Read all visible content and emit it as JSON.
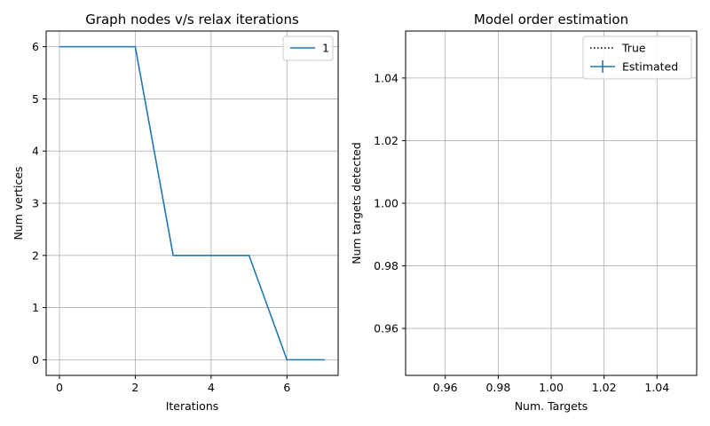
{
  "chart_data": [
    {
      "type": "line",
      "title": "Graph nodes v/s relax iterations",
      "xlabel": "Iterations",
      "ylabel": "Num vertices",
      "xlim": [
        -0.35,
        7.35
      ],
      "ylim": [
        -0.3,
        6.3
      ],
      "xticks": [
        0,
        2,
        4,
        6
      ],
      "yticks": [
        0,
        1,
        2,
        3,
        4,
        5,
        6
      ],
      "grid": true,
      "legend_position": "top-right",
      "series": [
        {
          "name": "1",
          "color": "#1f77b4",
          "x": [
            0,
            1,
            2,
            3,
            4,
            5,
            6,
            7
          ],
          "y": [
            6,
            6,
            6,
            2,
            2,
            2,
            0,
            0
          ]
        }
      ]
    },
    {
      "type": "line",
      "title": "Model order estimation",
      "xlabel": "Num. Targets",
      "ylabel": "Num targets detected",
      "xlim": [
        0.945,
        1.055
      ],
      "ylim": [
        0.945,
        1.055
      ],
      "xticks": [
        0.96,
        0.98,
        1.0,
        1.02,
        1.04
      ],
      "xtick_labels": [
        "0.96",
        "0.98",
        "1.00",
        "1.02",
        "1.04"
      ],
      "yticks": [
        0.96,
        0.98,
        1.0,
        1.02,
        1.04
      ],
      "ytick_labels": [
        "0.96",
        "0.98",
        "1.00",
        "1.02",
        "1.04"
      ],
      "grid": true,
      "legend_position": "top-right",
      "series": [
        {
          "name": "True",
          "color": "#000000",
          "style": "dotted",
          "x": [],
          "y": []
        },
        {
          "name": "Estimated",
          "color": "#1f77b4",
          "style": "errorbar",
          "x": [],
          "y": []
        }
      ]
    }
  ]
}
